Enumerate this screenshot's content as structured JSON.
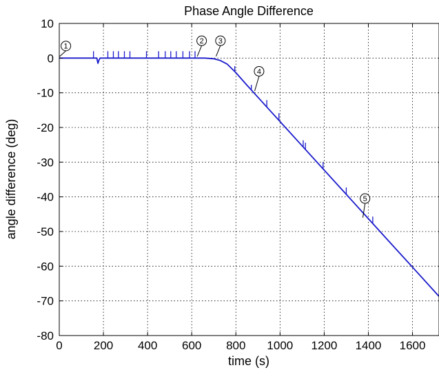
{
  "chart_data": {
    "type": "line",
    "title": "Phase Angle Difference",
    "xlabel": "time (s)",
    "ylabel": "angle difference (deg)",
    "xlim": [
      0,
      1720
    ],
    "ylim": [
      -80,
      10
    ],
    "xticks": [
      0,
      200,
      400,
      600,
      800,
      1000,
      1200,
      1400,
      1600
    ],
    "yticks": [
      10,
      0,
      -10,
      -20,
      -30,
      -40,
      -50,
      -60,
      -70,
      -80
    ],
    "grid": true,
    "series": [
      {
        "color": "#1a1acc",
        "x": [
          0,
          170,
          175,
          180,
          185,
          660,
          700,
          730,
          760,
          800,
          850,
          900,
          950,
          1000,
          1100,
          1200,
          1300,
          1400,
          1500,
          1600,
          1720
        ],
        "y": [
          0,
          0,
          -1.5,
          -0.5,
          0,
          0,
          -0.2,
          -0.7,
          -1.7,
          -4.2,
          -7.8,
          -11.3,
          -14.8,
          -18.3,
          -25.3,
          -32.3,
          -39.3,
          -46.3,
          -53.3,
          -60.3,
          -68.7
        ]
      }
    ],
    "spikes": [
      {
        "x": 155,
        "y": 0,
        "dy": 2
      },
      {
        "x": 220,
        "y": 0,
        "dy": 2
      },
      {
        "x": 245,
        "y": 0,
        "dy": 2
      },
      {
        "x": 268,
        "y": 0,
        "dy": 2
      },
      {
        "x": 295,
        "y": 0,
        "dy": 2
      },
      {
        "x": 320,
        "y": 0,
        "dy": 2
      },
      {
        "x": 395,
        "y": 0,
        "dy": 2
      },
      {
        "x": 450,
        "y": 0,
        "dy": 2
      },
      {
        "x": 480,
        "y": 0,
        "dy": 2
      },
      {
        "x": 505,
        "y": 0,
        "dy": 2
      },
      {
        "x": 530,
        "y": 0,
        "dy": 2
      },
      {
        "x": 560,
        "y": 0,
        "dy": 2
      },
      {
        "x": 590,
        "y": 0,
        "dy": 2
      },
      {
        "x": 615,
        "y": 0,
        "dy": 2
      },
      {
        "x": 795,
        "y": -3.8,
        "dy": 1.5
      },
      {
        "x": 870,
        "y": -9.2,
        "dy": 1.5
      },
      {
        "x": 940,
        "y": -14.1,
        "dy": 2
      },
      {
        "x": 995,
        "y": -17.9,
        "dy": 2
      },
      {
        "x": 1105,
        "y": -25.7,
        "dy": 2
      },
      {
        "x": 1115,
        "y": -26.4,
        "dy": 2
      },
      {
        "x": 1195,
        "y": -32.0,
        "dy": 2
      },
      {
        "x": 1300,
        "y": -39.3,
        "dy": 2
      },
      {
        "x": 1420,
        "y": -47.7,
        "dy": 2
      }
    ],
    "markers": [
      {
        "label": "1",
        "x": 30,
        "y": 3.5,
        "tip_x": 2,
        "tip_y": 0.5
      },
      {
        "label": "2",
        "x": 645,
        "y": 5.0,
        "tip_x": 625,
        "tip_y": 0.5
      },
      {
        "label": "3",
        "x": 730,
        "y": 5.0,
        "tip_x": 710,
        "tip_y": 0.5
      },
      {
        "label": "4",
        "x": 905,
        "y": -3.8,
        "tip_x": 885,
        "tip_y": -9.5
      },
      {
        "label": "5",
        "x": 1385,
        "y": -40.5,
        "tip_x": 1375,
        "tip_y": -46.0
      }
    ]
  }
}
